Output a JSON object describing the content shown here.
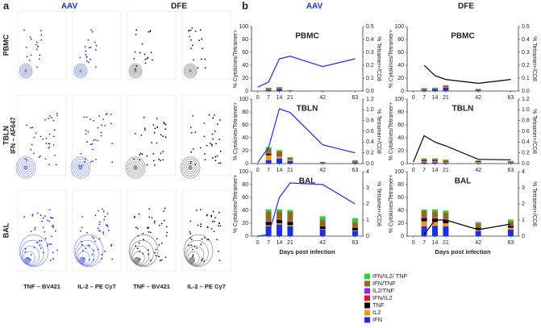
{
  "panel_a": {
    "label": "a",
    "columns": [
      "AAV",
      "DFE"
    ],
    "rows": [
      "PBMC",
      "TBLN",
      "BAL"
    ],
    "y_axis_label": "IFN – AF647",
    "x_axis_labels": [
      "TNF – BV421",
      "IL-2 – PE Cy7",
      "TNF – BV421",
      "IL-2 – PE Cy7"
    ]
  },
  "panel_b": {
    "label": "b",
    "columns": [
      "AAV",
      "DFE"
    ]
  },
  "chart_data": [
    {
      "type": "combo",
      "title": "PBMC",
      "ylabel": "% Cytokines/Tetramer+",
      "y2label": "% Tetramer+/CD8",
      "x": [
        0,
        7,
        14,
        21,
        42,
        63
      ],
      "xlim": [
        -4,
        68
      ],
      "xticks": [
        0,
        7,
        14,
        21,
        42,
        63
      ],
      "ylim": [
        0,
        100
      ],
      "yticks": [
        0,
        20,
        40,
        60,
        80,
        100
      ],
      "y2lim": [
        0,
        0.5
      ],
      "y2ticks": [
        {
          "value": 0,
          "label": "0.0"
        },
        0.1,
        0.2,
        0.3,
        0.4,
        0.5
      ],
      "series": [
        {
          "name": "IFN",
          "color": "#1a2ee6",
          "values": [
            null,
            2,
            3,
            0.5,
            0.3,
            0.2
          ]
        },
        {
          "name": "IL2",
          "color": "#f7941d",
          "values": [
            null,
            1,
            0.5,
            0.3,
            0.1,
            0.1
          ]
        },
        {
          "name": "TNF",
          "color": "#000000",
          "values": [
            null,
            0.5,
            0.3,
            0.2,
            0.1,
            0
          ]
        },
        {
          "name": "IFN/IL2",
          "color": "#e31a1c",
          "values": [
            null,
            0.2,
            0.2,
            0,
            0,
            0
          ]
        },
        {
          "name": "IL2/TNF",
          "color": "#a020f0",
          "values": [
            null,
            0.1,
            0.1,
            0,
            0,
            0
          ]
        },
        {
          "name": "IFN/TNF",
          "color": "#8c6d1f",
          "values": [
            null,
            1,
            1.5,
            0.3,
            0.2,
            0.1
          ]
        },
        {
          "name": "IFN/IL2/ TNF",
          "color": "#2ecc40",
          "values": [
            null,
            0.5,
            0.5,
            0.2,
            0.1,
            0.1
          ]
        }
      ],
      "line": {
        "axis": "y2",
        "color": "#1a2ee6",
        "values": [
          0.03,
          0.07,
          0.25,
          0.27,
          0.19,
          0.25
        ]
      }
    },
    {
      "type": "combo",
      "title": "PBMC",
      "ylabel": "% Cytokines/Tetramer+",
      "y2label": "% Tetramer+/CD8",
      "x": [
        0,
        7,
        14,
        21,
        42,
        63
      ],
      "xlim": [
        -4,
        68
      ],
      "xticks": [
        0,
        7,
        14,
        21,
        42,
        63
      ],
      "ylim": [
        0,
        100
      ],
      "yticks": [
        0,
        20,
        40,
        60,
        80,
        100
      ],
      "y2lim": [
        0,
        0.5
      ],
      "y2ticks": [
        {
          "value": 0,
          "label": "0.0"
        },
        0.1,
        0.2,
        0.3,
        0.4,
        0.5
      ],
      "series": [
        {
          "name": "IFN",
          "color": "#1a2ee6",
          "values": [
            null,
            2,
            3,
            5,
            2,
            0.2
          ]
        },
        {
          "name": "IL2",
          "color": "#f7941d",
          "values": [
            null,
            1,
            0.5,
            1,
            0.5,
            0
          ]
        },
        {
          "name": "TNF",
          "color": "#000000",
          "values": [
            null,
            0.5,
            0.5,
            0.5,
            0.3,
            0
          ]
        },
        {
          "name": "IFN/IL2",
          "color": "#e31a1c",
          "values": [
            null,
            0.3,
            0.3,
            1,
            0,
            0.3
          ]
        },
        {
          "name": "IL2/TNF",
          "color": "#a020f0",
          "values": [
            null,
            0.2,
            0.2,
            0.2,
            0,
            0
          ]
        },
        {
          "name": "IFN/TNF",
          "color": "#8c6d1f",
          "values": [
            null,
            0.5,
            0.5,
            1,
            0.3,
            0
          ]
        },
        {
          "name": "IFN/IL2/ TNF",
          "color": "#2ecc40",
          "values": [
            null,
            0.3,
            0.3,
            0.5,
            0.2,
            0
          ]
        }
      ],
      "line": {
        "axis": "y2",
        "color": "#000000",
        "values": [
          null,
          0.2,
          0.12,
          0.09,
          0.06,
          0.09
        ]
      }
    },
    {
      "type": "combo",
      "title": "TBLN",
      "ylabel": "% Cytokines/Tetramer+",
      "y2label": "% Tetramer+/CD8",
      "x": [
        0,
        7,
        14,
        21,
        42,
        63
      ],
      "xlim": [
        -4,
        68
      ],
      "xticks": [
        0,
        7,
        14,
        21,
        42,
        63
      ],
      "ylim": [
        0,
        100
      ],
      "yticks": [
        0,
        20,
        40,
        60,
        80,
        100
      ],
      "y2lim": [
        0,
        1.2
      ],
      "y2ticks": [
        {
          "value": 0,
          "label": "0.0"
        },
        0.2,
        0.4,
        0.6,
        0.8,
        {
          "value": 1,
          "label": "1.0"
        },
        1.2
      ],
      "series": [
        {
          "name": "IFN",
          "color": "#1a2ee6",
          "values": [
            null,
            5,
            8,
            4,
            1,
            2
          ]
        },
        {
          "name": "IL2",
          "color": "#f7941d",
          "values": [
            null,
            8,
            4,
            2,
            0.5,
            1
          ]
        },
        {
          "name": "TNF",
          "color": "#000000",
          "values": [
            null,
            2,
            1,
            0.5,
            0.3,
            0.5
          ]
        },
        {
          "name": "IFN/IL2",
          "color": "#e31a1c",
          "values": [
            null,
            1,
            0.5,
            0.3,
            0,
            0.2
          ]
        },
        {
          "name": "IL2/TNF",
          "color": "#a020f0",
          "values": [
            null,
            0.5,
            0.3,
            0.2,
            0,
            0.1
          ]
        },
        {
          "name": "IFN/TNF",
          "color": "#8c6d1f",
          "values": [
            null,
            6,
            5,
            2,
            0.7,
            1
          ]
        },
        {
          "name": "IFN/IL2/ TNF",
          "color": "#2ecc40",
          "values": [
            null,
            3,
            2,
            1,
            0.3,
            0.5
          ]
        }
      ],
      "line": {
        "axis": "y2",
        "color": "#1a2ee6",
        "values": [
          0.02,
          0.3,
          1.02,
          0.95,
          0.35,
          0.2
        ]
      }
    },
    {
      "type": "combo",
      "title": "TBLN",
      "ylabel": "% Cytokines/Tetramer+",
      "y2label": "% Tetramer+/CD8",
      "x": [
        0,
        7,
        14,
        21,
        42,
        63
      ],
      "xlim": [
        -4,
        68
      ],
      "xticks": [
        0,
        7,
        14,
        21,
        42,
        63
      ],
      "ylim": [
        0,
        100
      ],
      "yticks": [
        0,
        20,
        40,
        60,
        80,
        100
      ],
      "y2lim": [
        0,
        1.2
      ],
      "y2ticks": [
        {
          "value": 0,
          "label": "0.0"
        },
        0.2,
        0.4,
        0.6,
        0.8,
        {
          "value": 1,
          "label": "1.0"
        },
        1.2
      ],
      "series": [
        {
          "name": "IFN",
          "color": "#1a2ee6",
          "values": [
            null,
            2,
            2,
            1.5,
            1,
            1
          ]
        },
        {
          "name": "IL2",
          "color": "#f7941d",
          "values": [
            null,
            2,
            2,
            1.5,
            1.5,
            1
          ]
        },
        {
          "name": "TNF",
          "color": "#000000",
          "values": [
            null,
            1,
            1,
            1,
            1,
            0.5
          ]
        },
        {
          "name": "IFN/IL2",
          "color": "#e31a1c",
          "values": [
            null,
            0.3,
            0.3,
            0.2,
            0.2,
            0.2
          ]
        },
        {
          "name": "IL2/TNF",
          "color": "#a020f0",
          "values": [
            null,
            0.2,
            0.2,
            0.1,
            0.1,
            0.1
          ]
        },
        {
          "name": "IFN/TNF",
          "color": "#8c6d1f",
          "values": [
            null,
            2,
            2,
            1.5,
            1,
            1
          ]
        },
        {
          "name": "IFN/IL2/ TNF",
          "color": "#2ecc40",
          "values": [
            null,
            0.5,
            0.5,
            0.3,
            0.3,
            0.3
          ]
        }
      ],
      "line": {
        "axis": "y2",
        "color": "#000000",
        "values": [
          0.03,
          0.52,
          0.4,
          0.33,
          0.08,
          0.07
        ]
      }
    },
    {
      "type": "combo",
      "title": "BAL",
      "ylabel": "% Cytokines/Tetramer+",
      "y2label": "% Tetramer+/CD8",
      "xlabel": "Days post infection",
      "x": [
        0,
        7,
        14,
        21,
        42,
        63
      ],
      "xlim": [
        -4,
        68
      ],
      "xticks": [
        0,
        7,
        14,
        21,
        42,
        63
      ],
      "ylim": [
        0,
        100
      ],
      "yticks": [
        0,
        20,
        40,
        60,
        80,
        100
      ],
      "y2lim": [
        0,
        4
      ],
      "y2ticks": [
        0,
        1,
        2,
        3,
        4
      ],
      "series": [
        {
          "name": "IFN",
          "color": "#1a2ee6",
          "values": [
            null,
            15,
            18,
            15,
            10,
            8
          ]
        },
        {
          "name": "IL2",
          "color": "#f7941d",
          "values": [
            null,
            2,
            2,
            2,
            1,
            1
          ]
        },
        {
          "name": "TNF",
          "color": "#000000",
          "values": [
            null,
            5,
            5,
            5,
            4,
            4
          ]
        },
        {
          "name": "IFN/IL2",
          "color": "#e31a1c",
          "values": [
            null,
            1,
            1,
            1,
            0.5,
            0.5
          ]
        },
        {
          "name": "IL2/TNF",
          "color": "#a020f0",
          "values": [
            null,
            0.5,
            0.5,
            0.5,
            0.3,
            0.3
          ]
        },
        {
          "name": "IFN/TNF",
          "color": "#8c6d1f",
          "values": [
            null,
            15,
            12,
            14,
            10,
            8
          ]
        },
        {
          "name": "IFN/IL2/ TNF",
          "color": "#2ecc40",
          "values": [
            null,
            3,
            3,
            3,
            5,
            6
          ]
        }
      ],
      "line": {
        "axis": "y2",
        "color": "#1a2ee6",
        "values": [
          0,
          0.1,
          2.4,
          3.3,
          3.2,
          2.0
        ]
      }
    },
    {
      "type": "combo",
      "title": "BAL",
      "ylabel": "% Cytokines/Tetramer+",
      "y2label": "% Tetramer+/CD8",
      "xlabel": "Days post infection",
      "x": [
        0,
        7,
        14,
        21,
        42,
        63
      ],
      "xlim": [
        -4,
        68
      ],
      "xticks": [
        0,
        7,
        14,
        21,
        42,
        63
      ],
      "ylim": [
        0,
        100
      ],
      "yticks": [
        0,
        20,
        40,
        60,
        80,
        100
      ],
      "y2lim": [
        0,
        4
      ],
      "y2ticks": [
        0,
        1,
        2,
        3,
        4
      ],
      "series": [
        {
          "name": "IFN",
          "color": "#1a2ee6",
          "values": [
            null,
            15,
            16,
            15,
            8,
            10
          ]
        },
        {
          "name": "IL2",
          "color": "#f7941d",
          "values": [
            null,
            8,
            6,
            5,
            2,
            3
          ]
        },
        {
          "name": "TNF",
          "color": "#000000",
          "values": [
            null,
            5,
            5,
            5,
            3,
            3
          ]
        },
        {
          "name": "IFN/IL2",
          "color": "#e31a1c",
          "values": [
            null,
            1,
            1,
            1,
            0.5,
            0.5
          ]
        },
        {
          "name": "IL2/TNF",
          "color": "#a020f0",
          "values": [
            null,
            0.5,
            0.5,
            0.5,
            0.3,
            0.3
          ]
        },
        {
          "name": "IFN/TNF",
          "color": "#8c6d1f",
          "values": [
            null,
            10,
            10,
            10,
            6,
            6
          ]
        },
        {
          "name": "IFN/IL2/ TNF",
          "color": "#2ecc40",
          "values": [
            null,
            2,
            3,
            3,
            2,
            3
          ]
        }
      ],
      "line": {
        "axis": "y2",
        "color": "#000000",
        "values": [
          null,
          0.1,
          1.0,
          1.0,
          0.4,
          0.75
        ]
      }
    }
  ]
}
